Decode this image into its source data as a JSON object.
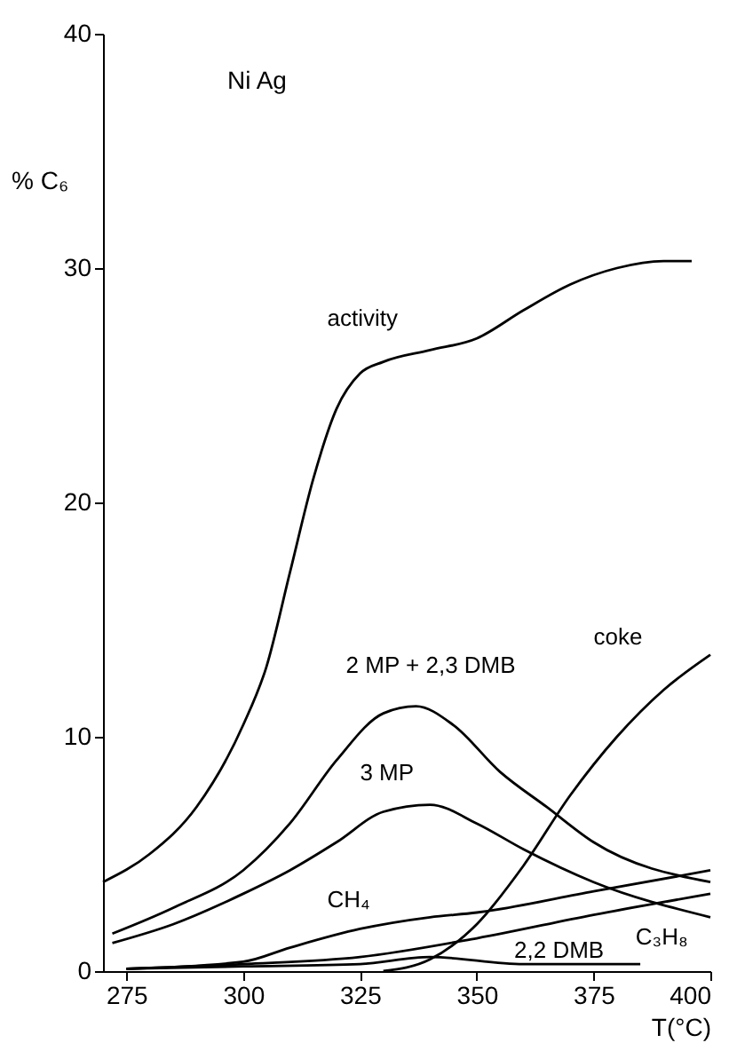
{
  "chart_data": {
    "type": "line",
    "title": "Ni Ag",
    "xlabel": "T(°C)",
    "ylabel": "% C₆",
    "xlim": [
      270,
      400
    ],
    "xticks": [
      275,
      300,
      325,
      350,
      375,
      400
    ],
    "ylim": [
      0,
      40
    ],
    "yticks": [
      0,
      10,
      20,
      30,
      40
    ],
    "grid": false,
    "legend": false,
    "marker": "none",
    "line_style": "solid",
    "series": [
      {
        "name": "activity",
        "color": "#000000",
        "x": [
          270,
          280,
          290,
          300,
          305,
          310,
          315,
          320,
          325,
          330,
          340,
          350,
          360,
          370,
          380,
          390,
          396
        ],
        "values": [
          3.8,
          5,
          7,
          10.5,
          13,
          17,
          21,
          24,
          25.5,
          26,
          26.5,
          27,
          28.2,
          29.3,
          30,
          30.3,
          30.3
        ]
      },
      {
        "name": "2 MP + 2,3 DMB",
        "color": "#000000",
        "x": [
          272,
          285,
          300,
          310,
          320,
          330,
          337,
          345,
          355,
          365,
          375,
          400
        ],
        "values": [
          1.6,
          2.7,
          4.3,
          6.3,
          9,
          11,
          11.3,
          10.5,
          8.5,
          7,
          5.5,
          3.8
        ]
      },
      {
        "name": "3 MP",
        "color": "#000000",
        "x": [
          272,
          285,
          300,
          310,
          320,
          330,
          340,
          350,
          360,
          375,
          400
        ],
        "values": [
          1.2,
          2,
          3.3,
          4.3,
          5.5,
          6.8,
          7.1,
          6.3,
          5.2,
          3.8,
          2.3
        ]
      },
      {
        "name": "coke",
        "color": "#000000",
        "x": [
          330,
          340,
          350,
          360,
          370,
          380,
          390,
          400
        ],
        "values": [
          0,
          0.5,
          2,
          4.5,
          7.5,
          10,
          12,
          13.5
        ]
      },
      {
        "name": "CH₄",
        "color": "#000000",
        "x": [
          275,
          300,
          310,
          325,
          340,
          350,
          375,
          400
        ],
        "values": [
          0.1,
          0.4,
          1,
          1.8,
          2.3,
          2.5,
          3.4,
          4.3
        ]
      },
      {
        "name": "C₃H₈",
        "color": "#000000",
        "x": [
          275,
          300,
          325,
          350,
          375,
          400
        ],
        "values": [
          0.1,
          0.3,
          0.6,
          1.4,
          2.4,
          3.3
        ]
      },
      {
        "name": "2,2 DMB",
        "color": "#000000",
        "x": [
          275,
          300,
          325,
          340,
          360,
          385
        ],
        "values": [
          0.1,
          0.2,
          0.3,
          0.6,
          0.3,
          0.3
        ]
      }
    ]
  }
}
